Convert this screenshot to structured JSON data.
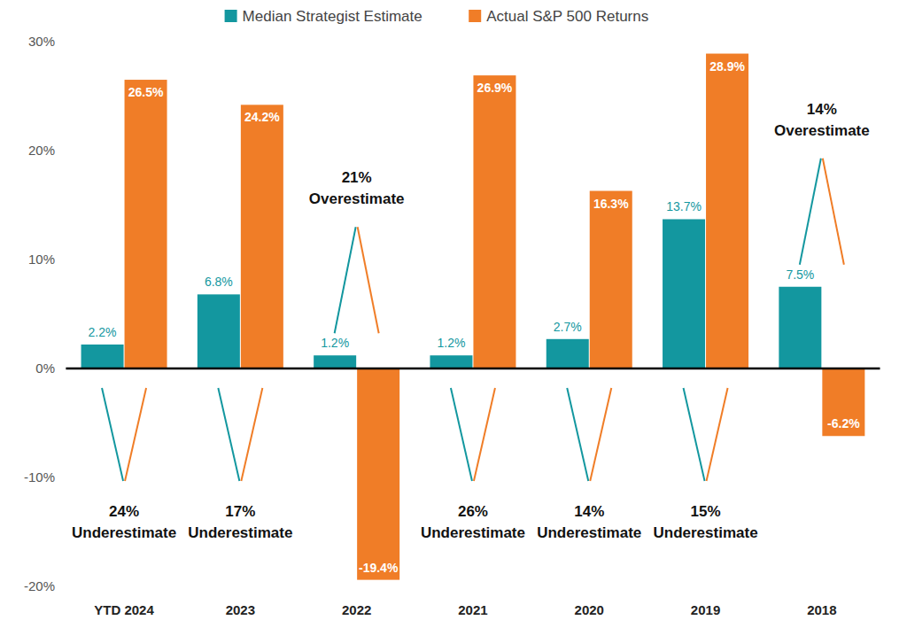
{
  "chart_data": {
    "type": "bar",
    "categories": [
      "YTD 2024",
      "2023",
      "2022",
      "2021",
      "2020",
      "2019",
      "2018"
    ],
    "series": [
      {
        "name": "Median Strategist Estimate",
        "color": "#13979f",
        "values": [
          2.2,
          6.8,
          1.2,
          1.2,
          2.7,
          13.7,
          7.5
        ],
        "value_labels": [
          "2.2%",
          "6.8%",
          "1.2%",
          "1.2%",
          "2.7%",
          "13.7%",
          "7.5%"
        ]
      },
      {
        "name": "Actual S&P 500 Returns",
        "color": "#f07d27",
        "values": [
          26.5,
          24.2,
          -19.4,
          26.9,
          16.3,
          28.9,
          -6.2
        ],
        "value_labels": [
          "26.5%",
          "24.2%",
          "-19.4%",
          "26.9%",
          "16.3%",
          "28.9%",
          "-6.2%"
        ]
      }
    ],
    "ylim": [
      -20,
      30
    ],
    "yticks": [
      {
        "value": -20,
        "label": "-20%"
      },
      {
        "value": -10,
        "label": "-10%"
      },
      {
        "value": 0,
        "label": "0%"
      },
      {
        "value": 10,
        "label": "10%"
      },
      {
        "value": 20,
        "label": "20%"
      },
      {
        "value": 30,
        "label": "30%"
      }
    ],
    "grid": false,
    "legend": "top",
    "data_labels": true,
    "annotations": [
      {
        "category": "YTD 2024",
        "text": [
          "24%",
          "Underestimate"
        ]
      },
      {
        "category": "2023",
        "text": [
          "17%",
          "Underestimate"
        ]
      },
      {
        "category": "2022",
        "text": [
          "21%",
          "Overestimate"
        ]
      },
      {
        "category": "2021",
        "text": [
          "26%",
          "Underestimate"
        ]
      },
      {
        "category": "2020",
        "text": [
          "14%",
          "Underestimate"
        ]
      },
      {
        "category": "2019",
        "text": [
          "15%",
          "Underestimate"
        ]
      },
      {
        "category": "2018",
        "text": [
          "14%",
          "Overestimate"
        ]
      }
    ]
  }
}
